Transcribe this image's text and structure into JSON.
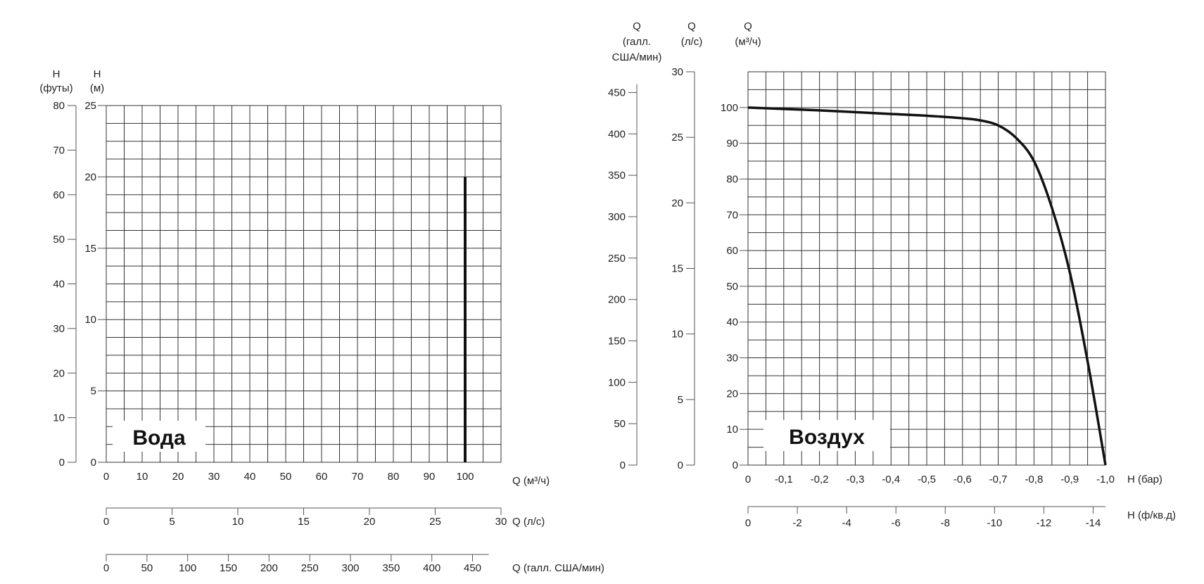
{
  "chart_data": [
    {
      "type": "line",
      "label": "Вода",
      "x_axes": [
        {
          "label": "Q (м³/ч)",
          "ticks": [
            "0",
            "10",
            "20",
            "30",
            "40",
            "50",
            "60",
            "70",
            "80",
            "90",
            "100"
          ],
          "range": [
            0,
            110
          ]
        },
        {
          "label": "Q (л/с)",
          "ticks": [
            "0",
            "5",
            "10",
            "15",
            "20",
            "25",
            "30"
          ],
          "range": [
            0,
            30
          ]
        },
        {
          "label": "Q (галл. США/мин)",
          "ticks": [
            "0",
            "50",
            "100",
            "150",
            "200",
            "250",
            "300",
            "350",
            "400",
            "450"
          ],
          "range": [
            0,
            485
          ]
        }
      ],
      "y_axes": [
        {
          "label_top": "H",
          "label_bottom": "(футы)",
          "ticks": [
            "0",
            "10",
            "20",
            "30",
            "40",
            "50",
            "60",
            "70",
            "80"
          ],
          "range": [
            0,
            80
          ]
        },
        {
          "label_top": "H",
          "label_bottom": "(м)",
          "ticks": [
            "0",
            "5",
            "10",
            "15",
            "20",
            "25"
          ],
          "range": [
            0,
            25
          ]
        }
      ],
      "grid": true,
      "series": [
        {
          "x": [
            100,
            100
          ],
          "y": [
            0,
            20
          ]
        }
      ]
    },
    {
      "type": "line",
      "label": "Воздух",
      "x_axes": [
        {
          "label": "H (бар)",
          "ticks": [
            "0",
            "-0,1",
            "-0,2",
            "-0,3",
            "-0,4",
            "-0,5",
            "-0,6",
            "-0,7",
            "-0,8",
            "-0,9",
            "-1,0"
          ],
          "range": [
            0,
            -1.0
          ]
        },
        {
          "label": "H (ф/кв.д)",
          "ticks": [
            "0",
            "-2",
            "-4",
            "-6",
            "-8",
            "-10",
            "-12",
            "-14"
          ],
          "range": [
            0,
            -14.5
          ]
        }
      ],
      "y_axes": [
        {
          "label_lines": [
            "Q",
            "(галл.",
            "США/мин)"
          ],
          "ticks": [
            "0",
            "50",
            "100",
            "150",
            "200",
            "250",
            "300",
            "350",
            "400",
            "450"
          ],
          "range": [
            0,
            475
          ]
        },
        {
          "label_lines": [
            "Q",
            "(л/с)"
          ],
          "ticks": [
            "0",
            "5",
            "10",
            "15",
            "20",
            "25",
            "30"
          ],
          "range": [
            0,
            30
          ]
        },
        {
          "label_lines": [
            "Q",
            "(м³/ч)"
          ],
          "ticks": [
            "0",
            "10",
            "20",
            "30",
            "40",
            "50",
            "60",
            "70",
            "80",
            "90",
            "100"
          ],
          "range": [
            0,
            110
          ]
        }
      ],
      "grid": true,
      "series": [
        {
          "x": [
            0,
            -0.1,
            -0.2,
            -0.3,
            -0.4,
            -0.5,
            -0.6,
            -0.65,
            -0.7,
            -0.75,
            -0.8,
            -0.85,
            -0.9,
            -0.95,
            -1.0
          ],
          "y": [
            100,
            99.6,
            99.2,
            98.7,
            98.2,
            97.7,
            97.0,
            96.4,
            95.0,
            91.5,
            85.0,
            72.0,
            54.0,
            29.0,
            0
          ]
        }
      ]
    }
  ]
}
